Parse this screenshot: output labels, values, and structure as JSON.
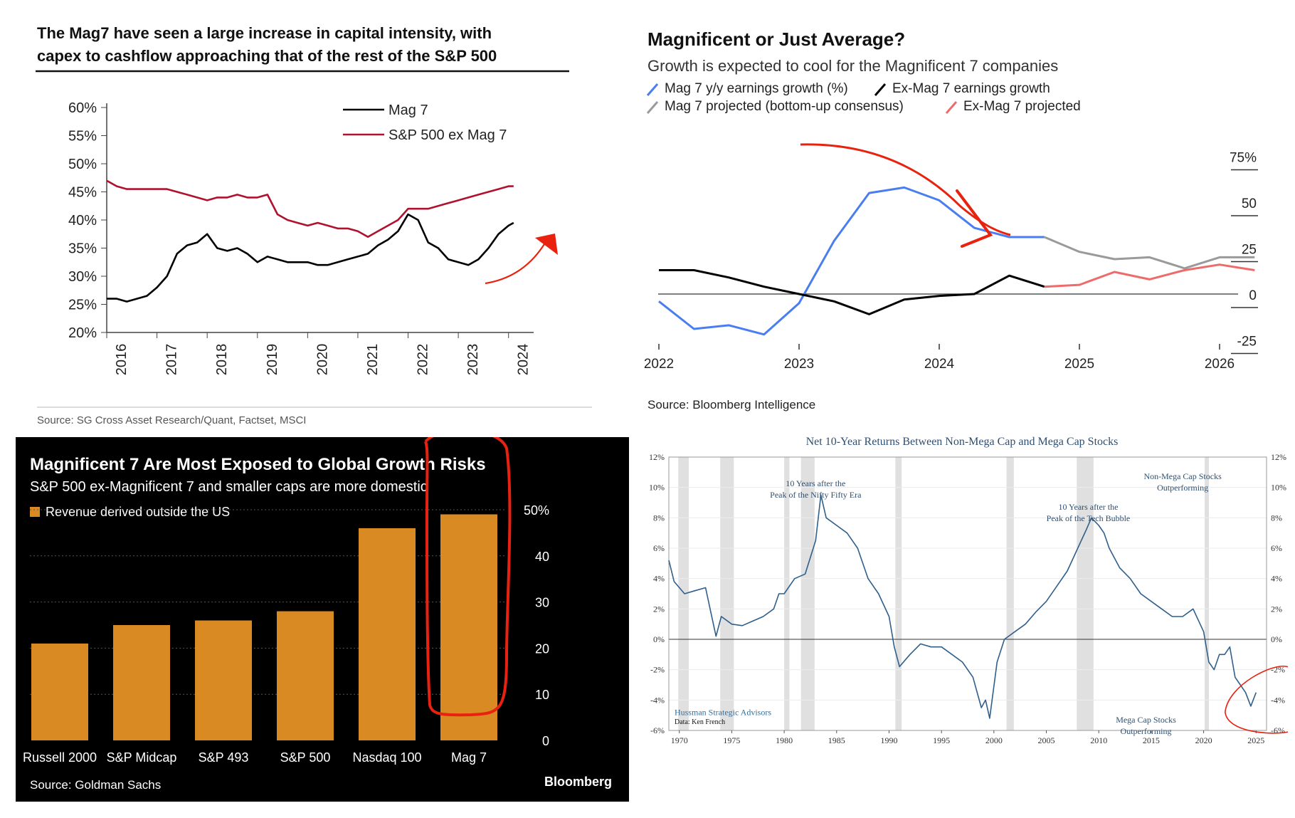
{
  "chart_data": [
    {
      "type": "line",
      "title": "The Mag7 have seen a large increase in capital intensity, with capex to cashflow approaching that of the rest of the S&P 500",
      "title_lines": [
        "The Mag7 have seen a large increase in capital intensity, with",
        "capex to cashflow approaching that of the rest of the S&P 500"
      ],
      "source": "Source: SG Cross Asset Research/Quant, Factset, MSCI",
      "y_ticks": [
        "60%",
        "55%",
        "50%",
        "45%",
        "40%",
        "35%",
        "30%",
        "25%",
        "20%"
      ],
      "x_ticks": [
        "2016",
        "2017",
        "2018",
        "2019",
        "2020",
        "2021",
        "2022",
        "2023",
        "2024"
      ],
      "ylim": [
        20,
        60
      ],
      "xlim": [
        2016,
        2024.5
      ],
      "legend_position": "top-right",
      "series": [
        {
          "name": "Mag 7",
          "color": "#000000",
          "x": [
            2016.0,
            2016.2,
            2016.4,
            2016.6,
            2016.8,
            2017.0,
            2017.2,
            2017.4,
            2017.6,
            2017.8,
            2018.0,
            2018.2,
            2018.4,
            2018.6,
            2018.8,
            2019.0,
            2019.2,
            2019.4,
            2019.6,
            2019.8,
            2020.0,
            2020.2,
            2020.4,
            2020.6,
            2020.8,
            2021.0,
            2021.2,
            2021.4,
            2021.6,
            2021.8,
            2022.0,
            2022.2,
            2022.4,
            2022.6,
            2022.8,
            2023.0,
            2023.2,
            2023.4,
            2023.6,
            2023.8,
            2024.0,
            2024.1
          ],
          "y": [
            26,
            26,
            25.5,
            26,
            26.5,
            28,
            30,
            34,
            35.5,
            36,
            37.5,
            35,
            34.5,
            35,
            34,
            32.5,
            33.5,
            33,
            32.5,
            32.5,
            32.5,
            32,
            32,
            32.5,
            33,
            33.5,
            34,
            35.5,
            36.5,
            38,
            41,
            40,
            36,
            35,
            33,
            32.5,
            32,
            33,
            35,
            37.5,
            39,
            39.5
          ]
        },
        {
          "name": "S&P 500 ex Mag 7",
          "color": "#b0122e",
          "x": [
            2016.0,
            2016.2,
            2016.4,
            2016.6,
            2016.8,
            2017.0,
            2017.2,
            2017.4,
            2017.6,
            2017.8,
            2018.0,
            2018.2,
            2018.4,
            2018.6,
            2018.8,
            2019.0,
            2019.2,
            2019.4,
            2019.6,
            2019.8,
            2020.0,
            2020.2,
            2020.4,
            2020.6,
            2020.8,
            2021.0,
            2021.2,
            2021.4,
            2021.6,
            2021.8,
            2022.0,
            2022.2,
            2022.4,
            2022.6,
            2022.8,
            2023.0,
            2023.2,
            2023.4,
            2023.6,
            2023.8,
            2024.0,
            2024.1
          ],
          "y": [
            47,
            46,
            45.5,
            45.5,
            45.5,
            45.5,
            45.5,
            45,
            44.5,
            44,
            43.5,
            44,
            44,
            44.5,
            44,
            44,
            44.5,
            41,
            40,
            39.5,
            39,
            39.5,
            39,
            38.5,
            38.5,
            38,
            37,
            38,
            39,
            40,
            42,
            42,
            42,
            42.5,
            43,
            43.5,
            44,
            44.5,
            45,
            45.5,
            46,
            46
          ]
        }
      ],
      "annotation_color": "#e8220f"
    },
    {
      "type": "line",
      "title": "Magnificent or Just Average?",
      "subtitle": "Growth is expected to cool for the Magnificent 7 companies",
      "source": "Source: Bloomberg Intelligence",
      "y_ticks": [
        "75%",
        "50",
        "25",
        "0",
        "-25"
      ],
      "x_ticks": [
        "2022",
        "2023",
        "2024",
        "2025",
        "2026"
      ],
      "ylim": [
        -30,
        80
      ],
      "legend": [
        {
          "label": "Mag 7 y/y earnings growth (%)",
          "color": "#4a7df0"
        },
        {
          "label": "Ex-Mag 7 earnings growth",
          "color": "#000000"
        },
        {
          "label": "Mag 7 projected (bottom-up consensus)",
          "color": "#9a9a9a"
        },
        {
          "label": "Ex-Mag 7 projected",
          "color": "#ee6b6b"
        }
      ],
      "series": [
        {
          "name": "Mag 7 y/y earnings growth (%)",
          "color": "#4a7df0",
          "x": [
            2022.0,
            2022.25,
            2022.5,
            2022.75,
            2023.0,
            2023.25,
            2023.5,
            2023.75,
            2024.0,
            2024.25,
            2024.5,
            2024.75
          ],
          "y": [
            -4,
            -19,
            -17,
            -22,
            -5,
            29,
            55,
            58,
            51,
            36,
            31,
            null
          ]
        },
        {
          "name": "Ex-Mag 7 earnings growth",
          "color": "#000000",
          "x": [
            2022.0,
            2022.25,
            2022.5,
            2022.75,
            2023.0,
            2023.25,
            2023.5,
            2023.75,
            2024.0,
            2024.25,
            2024.5,
            2024.75
          ],
          "y": [
            13,
            13,
            9,
            4,
            0,
            -4,
            -11,
            -3,
            -1,
            0,
            10,
            4
          ]
        },
        {
          "name": "Mag 7 projected (bottom-up consensus)",
          "color": "#9a9a9a",
          "x": [
            2024.75,
            2025.0,
            2025.25,
            2025.5,
            2025.75,
            2026.0,
            2026.25
          ],
          "y": [
            31,
            23,
            19,
            20,
            14,
            20,
            20
          ]
        },
        {
          "name": "Ex-Mag 7 projected",
          "color": "#ee6b6b",
          "x": [
            2024.75,
            2025.0,
            2025.25,
            2025.5,
            2025.75,
            2026.0,
            2026.25
          ],
          "y": [
            4,
            5,
            12,
            8,
            13,
            16,
            13
          ]
        }
      ],
      "blue_end": 31,
      "annotation_color": "#e8220f"
    },
    {
      "type": "bar",
      "title": "Magnificent 7 Are Most Exposed to Global Growth Risks",
      "subtitle": "S&P 500 ex-Magnificent 7 and smaller caps are more domestic",
      "legend_label": "Revenue derived outside the US",
      "source": "Source: Goldman Sachs",
      "brand": "Bloomberg",
      "categories": [
        "Russell 2000",
        "S&P Midcap",
        "S&P 493",
        "S&P 500",
        "Nasdaq 100",
        "Mag 7"
      ],
      "values": [
        21,
        25,
        26,
        28,
        46,
        49
      ],
      "y_ticks": [
        "50%",
        "40",
        "30",
        "20",
        "10",
        "0"
      ],
      "ylim": [
        0,
        50
      ],
      "bar_color": "#d98a22",
      "annotation_color": "#e8220f"
    },
    {
      "type": "line",
      "title": "Net 10-Year Returns Between Non-Mega Cap and Mega Cap Stocks",
      "annotations": {
        "nifty": [
          "10 Years after the",
          "Peak of the Nifty Fifty Era"
        ],
        "tech": [
          "10 Years after the",
          "Peak of the Tech Bubble"
        ],
        "nonmega": [
          "Non-Mega Cap Stocks",
          "Outperforming"
        ],
        "mega": [
          "Mega Cap Stocks",
          "Outperforming"
        ],
        "brand": "Hussman Strategic Advisors",
        "data_credit": "Data: Ken French"
      },
      "y_ticks_left": [
        "12%",
        "10%",
        "8%",
        "6%",
        "4%",
        "2%",
        "0%",
        "-2%",
        "-4%",
        "-6%"
      ],
      "y_ticks_right": [
        "12%",
        "10%",
        "8%",
        "6%",
        "4%",
        "2%",
        "0%",
        "-2%",
        "-4%",
        "-6%"
      ],
      "x_ticks": [
        "1970",
        "1975",
        "1980",
        "1985",
        "1990",
        "1995",
        "2000",
        "2005",
        "2010",
        "2015",
        "2020",
        "2025"
      ],
      "xlim": [
        1969,
        2026
      ],
      "ylim": [
        -6,
        12
      ],
      "recessions": [
        [
          1969.9,
          1970.9
        ],
        [
          1973.9,
          1975.2
        ],
        [
          1980.0,
          1980.5
        ],
        [
          1981.6,
          1982.9
        ],
        [
          1990.6,
          1991.2
        ],
        [
          2001.2,
          2001.9
        ],
        [
          2007.9,
          2009.5
        ],
        [
          2020.1,
          2020.4
        ]
      ],
      "series": [
        {
          "name": "",
          "color": "#2f5f8a",
          "x": [
            1969.0,
            1969.5,
            1970.5,
            1971.5,
            1972.5,
            1973.0,
            1973.5,
            1974.0,
            1975.0,
            1976.0,
            1977.0,
            1978.0,
            1979.0,
            1979.5,
            1980.0,
            1981.0,
            1982.0,
            1983.0,
            1983.5,
            1984.0,
            1985.0,
            1986.0,
            1987.0,
            1988.0,
            1989.0,
            1990.0,
            1990.5,
            1991.0,
            1992.0,
            1993.0,
            1994.0,
            1995.0,
            1996.0,
            1997.0,
            1998.0,
            1998.8,
            1999.2,
            1999.6,
            2000.3,
            2001.0,
            2002.0,
            2003.0,
            2004.0,
            2005.0,
            2006.0,
            2007.0,
            2008.0,
            2008.8,
            2009.3,
            2010.0,
            2010.5,
            2011.0,
            2012.0,
            2013.0,
            2014.0,
            2015.0,
            2016.0,
            2017.0,
            2018.0,
            2019.0,
            2020.0,
            2020.5,
            2021.0,
            2021.5,
            2022.0,
            2022.5,
            2023.0,
            2023.5,
            2024.0,
            2024.5,
            2025.0
          ],
          "y": [
            5.2,
            3.8,
            3.0,
            3.2,
            3.4,
            1.8,
            0.2,
            1.5,
            1.0,
            0.9,
            1.2,
            1.5,
            2.0,
            3.0,
            3.0,
            4.0,
            4.3,
            6.5,
            9.5,
            8.0,
            7.5,
            7.0,
            6.0,
            4.0,
            3.0,
            1.5,
            -0.5,
            -1.8,
            -1.0,
            -0.3,
            -0.5,
            -0.5,
            -1.0,
            -1.5,
            -2.5,
            -4.5,
            -4.0,
            -5.2,
            -1.5,
            0.0,
            0.5,
            1.0,
            1.8,
            2.5,
            3.5,
            4.5,
            6.0,
            7.2,
            8.0,
            7.5,
            7.0,
            6.0,
            4.7,
            4.0,
            3.0,
            2.5,
            2.0,
            1.5,
            1.5,
            2.0,
            0.5,
            -1.5,
            -2.0,
            -1.0,
            -1.0,
            -0.5,
            -2.5,
            -3.0,
            -3.5,
            -4.4,
            -3.5
          ]
        }
      ],
      "annotation_color": "#e8220f"
    }
  ]
}
